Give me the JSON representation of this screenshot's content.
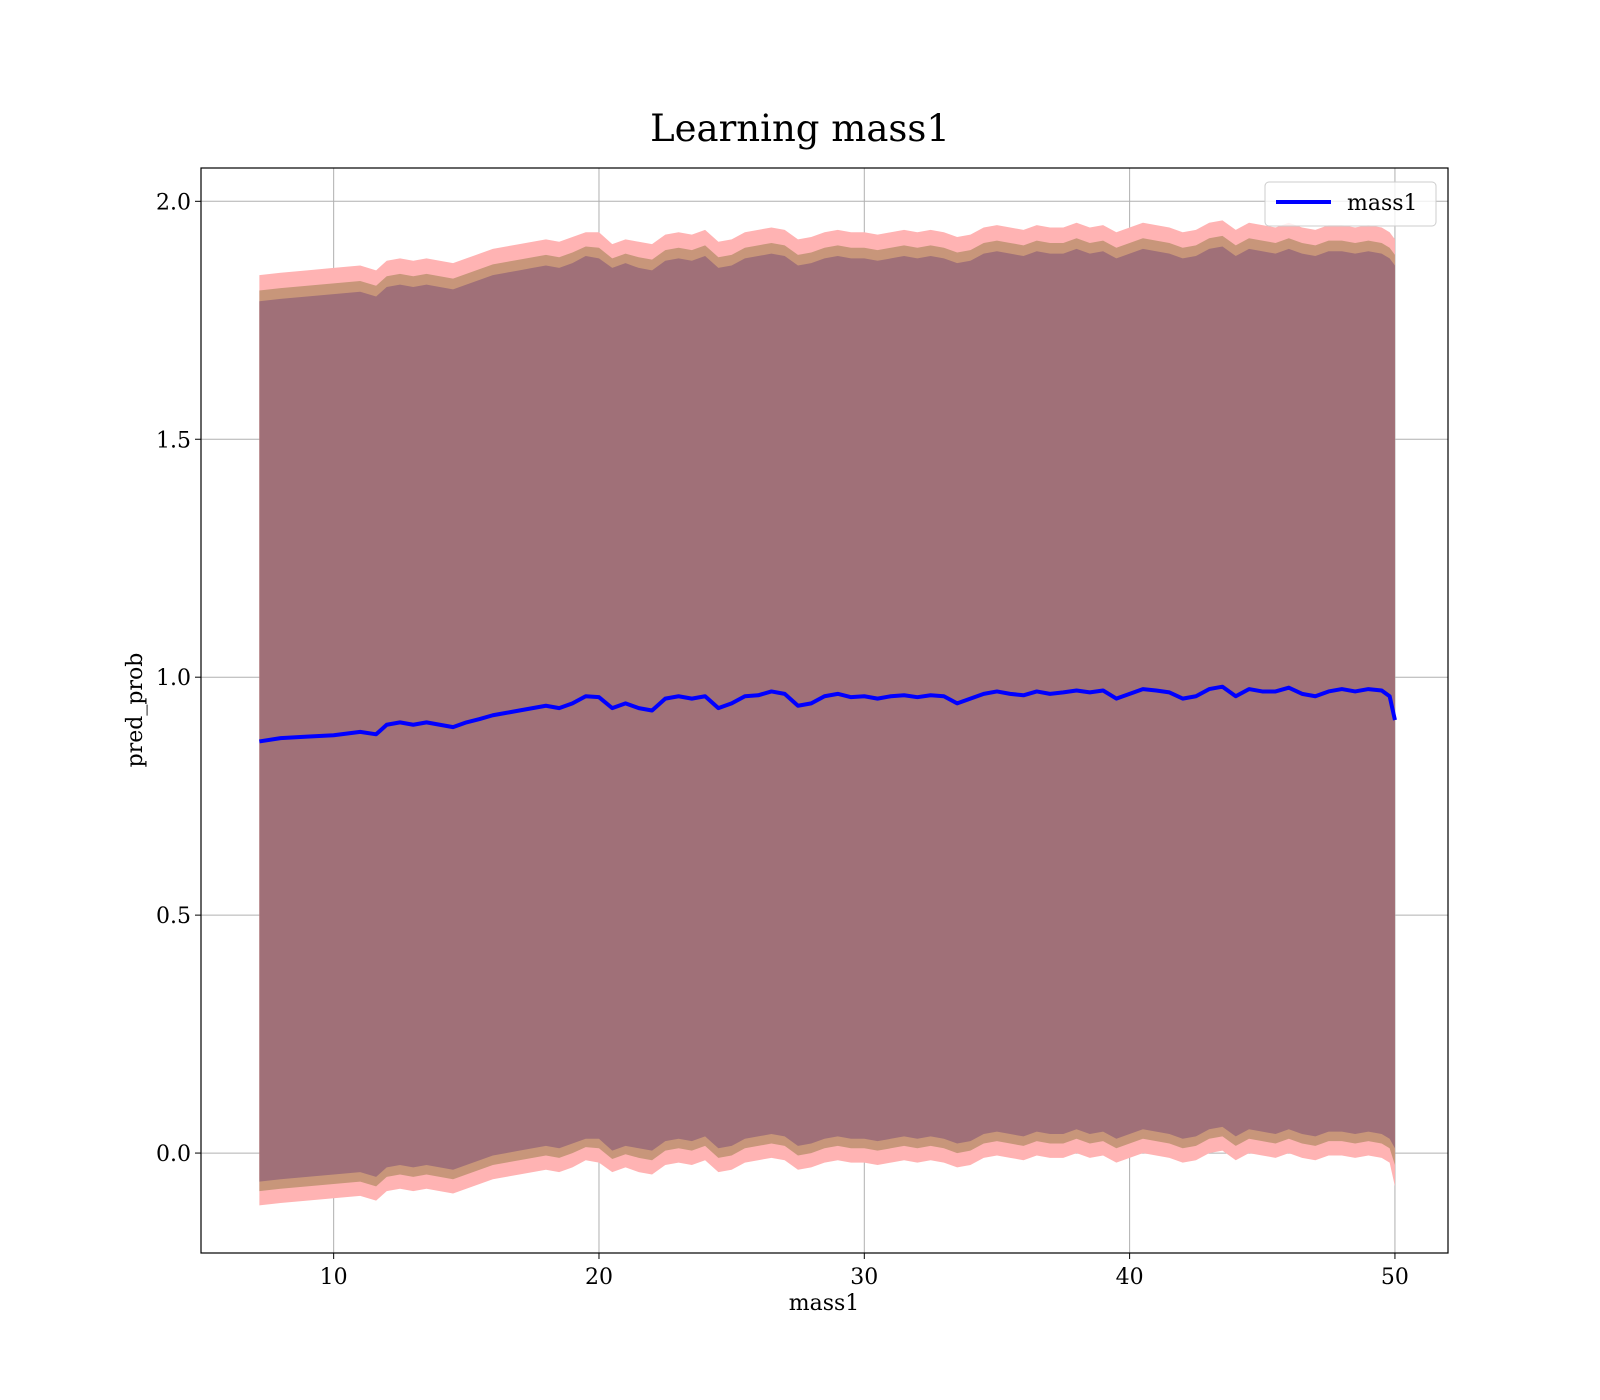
{
  "chart_data": {
    "type": "line",
    "title": "Learning mass1",
    "xlabel": "mass1",
    "ylabel": "pred_prob",
    "xlim": [
      5,
      52
    ],
    "ylim": [
      -0.21,
      2.07
    ],
    "xticks": [
      10,
      20,
      30,
      40,
      50
    ],
    "yticks": [
      0.0,
      0.5,
      1.0,
      1.5,
      2.0
    ],
    "xtick_labels": [
      "10",
      "20",
      "30",
      "40",
      "50"
    ],
    "ytick_labels": [
      "0.0",
      "0.5",
      "1.0",
      "1.5",
      "2.0"
    ],
    "grid": true,
    "legend": {
      "position": "top-right",
      "entries": [
        "mass1"
      ]
    },
    "colors": {
      "line": "#0000ff",
      "outer_band": "#ffb3b3",
      "middle_band": "#c8967a",
      "inner_band": "#a07078"
    },
    "x": [
      7.2,
      8,
      9,
      10,
      11,
      11.6,
      12,
      12.5,
      13,
      13.5,
      14,
      14.5,
      15,
      15.5,
      16,
      16.5,
      17,
      17.5,
      18,
      18.5,
      19,
      19.5,
      20,
      20.5,
      21,
      21.5,
      22,
      22.5,
      23,
      23.5,
      24,
      24.5,
      25,
      25.5,
      26,
      26.5,
      27,
      27.5,
      28,
      28.5,
      29,
      29.5,
      30,
      30.5,
      31,
      31.5,
      32,
      32.5,
      33,
      33.5,
      34,
      34.5,
      35,
      35.5,
      36,
      36.5,
      37,
      37.5,
      38,
      38.5,
      39,
      39.5,
      40,
      40.5,
      41,
      41.5,
      42,
      42.5,
      43,
      43.5,
      44,
      44.5,
      45,
      45.5,
      46,
      46.5,
      47,
      47.5,
      48,
      48.5,
      49,
      49.5,
      49.8,
      50
    ],
    "series": [
      {
        "name": "mass1",
        "values": [
          0.865,
          0.872,
          0.875,
          0.878,
          0.885,
          0.88,
          0.9,
          0.905,
          0.9,
          0.905,
          0.9,
          0.895,
          0.905,
          0.912,
          0.92,
          0.925,
          0.93,
          0.935,
          0.94,
          0.935,
          0.945,
          0.96,
          0.958,
          0.935,
          0.945,
          0.935,
          0.93,
          0.955,
          0.96,
          0.955,
          0.96,
          0.935,
          0.945,
          0.96,
          0.962,
          0.97,
          0.965,
          0.94,
          0.945,
          0.96,
          0.965,
          0.958,
          0.96,
          0.955,
          0.96,
          0.962,
          0.958,
          0.962,
          0.96,
          0.945,
          0.955,
          0.965,
          0.97,
          0.965,
          0.962,
          0.97,
          0.965,
          0.968,
          0.972,
          0.968,
          0.972,
          0.955,
          0.965,
          0.975,
          0.972,
          0.968,
          0.955,
          0.96,
          0.975,
          0.98,
          0.96,
          0.975,
          0.97,
          0.97,
          0.978,
          0.965,
          0.96,
          0.97,
          0.975,
          0.97,
          0.975,
          0.972,
          0.96,
          0.91
        ]
      }
    ],
    "bands": {
      "outer_upper": [
        1.845,
        1.85,
        1.855,
        1.86,
        1.865,
        1.855,
        1.875,
        1.88,
        1.875,
        1.88,
        1.875,
        1.87,
        1.88,
        1.89,
        1.9,
        1.905,
        1.91,
        1.915,
        1.92,
        1.915,
        1.925,
        1.935,
        1.935,
        1.91,
        1.92,
        1.915,
        1.91,
        1.93,
        1.935,
        1.93,
        1.94,
        1.915,
        1.92,
        1.935,
        1.94,
        1.945,
        1.94,
        1.92,
        1.925,
        1.935,
        1.94,
        1.935,
        1.935,
        1.93,
        1.935,
        1.94,
        1.935,
        1.94,
        1.935,
        1.925,
        1.93,
        1.945,
        1.95,
        1.945,
        1.94,
        1.95,
        1.945,
        1.945,
        1.955,
        1.945,
        1.95,
        1.935,
        1.945,
        1.955,
        1.95,
        1.945,
        1.935,
        1.94,
        1.955,
        1.96,
        1.94,
        1.955,
        1.95,
        1.945,
        1.955,
        1.945,
        1.94,
        1.95,
        1.95,
        1.945,
        1.95,
        1.945,
        1.935,
        1.92
      ],
      "inner_upper": [
        1.79,
        1.795,
        1.8,
        1.805,
        1.81,
        1.8,
        1.82,
        1.825,
        1.82,
        1.825,
        1.82,
        1.815,
        1.825,
        1.835,
        1.845,
        1.85,
        1.855,
        1.86,
        1.865,
        1.86,
        1.87,
        1.885,
        1.88,
        1.86,
        1.87,
        1.86,
        1.855,
        1.875,
        1.88,
        1.875,
        1.885,
        1.86,
        1.865,
        1.88,
        1.885,
        1.89,
        1.885,
        1.865,
        1.87,
        1.88,
        1.885,
        1.88,
        1.88,
        1.875,
        1.88,
        1.885,
        1.88,
        1.885,
        1.88,
        1.87,
        1.875,
        1.89,
        1.895,
        1.89,
        1.885,
        1.895,
        1.89,
        1.89,
        1.9,
        1.89,
        1.895,
        1.88,
        1.89,
        1.9,
        1.895,
        1.89,
        1.88,
        1.885,
        1.9,
        1.905,
        1.885,
        1.9,
        1.895,
        1.89,
        1.9,
        1.89,
        1.885,
        1.895,
        1.895,
        1.89,
        1.895,
        1.89,
        1.88,
        1.865
      ],
      "inner_lower": [
        -0.06,
        -0.055,
        -0.05,
        -0.045,
        -0.04,
        -0.05,
        -0.03,
        -0.025,
        -0.03,
        -0.025,
        -0.03,
        -0.035,
        -0.025,
        -0.015,
        -0.005,
        0.0,
        0.005,
        0.01,
        0.015,
        0.01,
        0.02,
        0.03,
        0.03,
        0.005,
        0.015,
        0.01,
        0.005,
        0.025,
        0.03,
        0.025,
        0.035,
        0.01,
        0.015,
        0.03,
        0.035,
        0.04,
        0.035,
        0.015,
        0.02,
        0.03,
        0.035,
        0.03,
        0.03,
        0.025,
        0.03,
        0.035,
        0.03,
        0.035,
        0.03,
        0.02,
        0.025,
        0.04,
        0.045,
        0.04,
        0.035,
        0.045,
        0.04,
        0.04,
        0.05,
        0.04,
        0.045,
        0.03,
        0.04,
        0.05,
        0.045,
        0.04,
        0.03,
        0.035,
        0.05,
        0.055,
        0.035,
        0.05,
        0.045,
        0.04,
        0.05,
        0.04,
        0.035,
        0.045,
        0.045,
        0.04,
        0.045,
        0.04,
        0.03,
        0.01
      ],
      "outer_lower": [
        -0.11,
        -0.105,
        -0.1,
        -0.095,
        -0.09,
        -0.1,
        -0.08,
        -0.075,
        -0.08,
        -0.075,
        -0.08,
        -0.085,
        -0.075,
        -0.065,
        -0.055,
        -0.05,
        -0.045,
        -0.04,
        -0.035,
        -0.04,
        -0.03,
        -0.015,
        -0.02,
        -0.04,
        -0.03,
        -0.04,
        -0.045,
        -0.025,
        -0.02,
        -0.025,
        -0.015,
        -0.04,
        -0.035,
        -0.02,
        -0.015,
        -0.01,
        -0.015,
        -0.035,
        -0.03,
        -0.02,
        -0.015,
        -0.02,
        -0.02,
        -0.025,
        -0.02,
        -0.015,
        -0.02,
        -0.015,
        -0.02,
        -0.03,
        -0.025,
        -0.01,
        -0.005,
        -0.01,
        -0.015,
        -0.005,
        -0.01,
        -0.01,
        0.0,
        -0.01,
        -0.005,
        -0.02,
        -0.01,
        0.0,
        -0.005,
        -0.01,
        -0.02,
        -0.015,
        0.0,
        0.005,
        -0.015,
        0.0,
        -0.005,
        -0.01,
        0.0,
        -0.01,
        -0.015,
        -0.005,
        -0.005,
        -0.01,
        -0.005,
        -0.01,
        -0.02,
        -0.07
      ]
    }
  }
}
